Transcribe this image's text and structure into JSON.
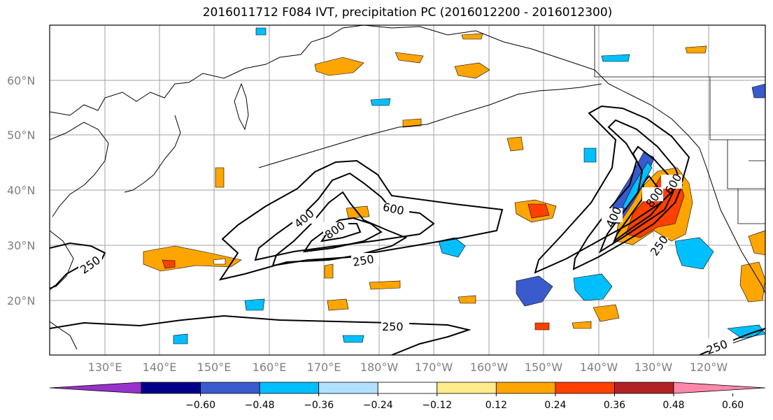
{
  "title": "2016011712 F084 IVT, precipitation PC (2016012200 - 2016012300)",
  "lat_labels": [
    "60°N",
    "50°N",
    "40°N",
    "30°N",
    "20°N"
  ],
  "lon_labels": [
    "130°E",
    "140°E",
    "150°E",
    "160°E",
    "170°E",
    "180°W",
    "170°W",
    "160°W",
    "150°W",
    "140°W",
    "130°W",
    "120°W"
  ],
  "colorbar": {
    "colors": [
      "#9932cc",
      "#00008b",
      "#3a5bcd",
      "#00bfff",
      "#b0e2ff",
      "#ffffff",
      "#ffec8b",
      "#ffa500",
      "#ff4000",
      "#b22222",
      "#ff88aa"
    ],
    "tick_labels": [
      "−0.60",
      "−0.48",
      "−0.36",
      "−0.24",
      "−0.12",
      "0.12",
      "0.24",
      "0.36",
      "0.48",
      "0.60"
    ]
  },
  "contour_labels": {
    "w400": "400",
    "w600": "600",
    "w800": "800",
    "w250": "250",
    "e400": "400",
    "e800": "800",
    "e600": "600",
    "e250": "250",
    "s250": "250",
    "sw250": "250",
    "se250": "250"
  }
}
